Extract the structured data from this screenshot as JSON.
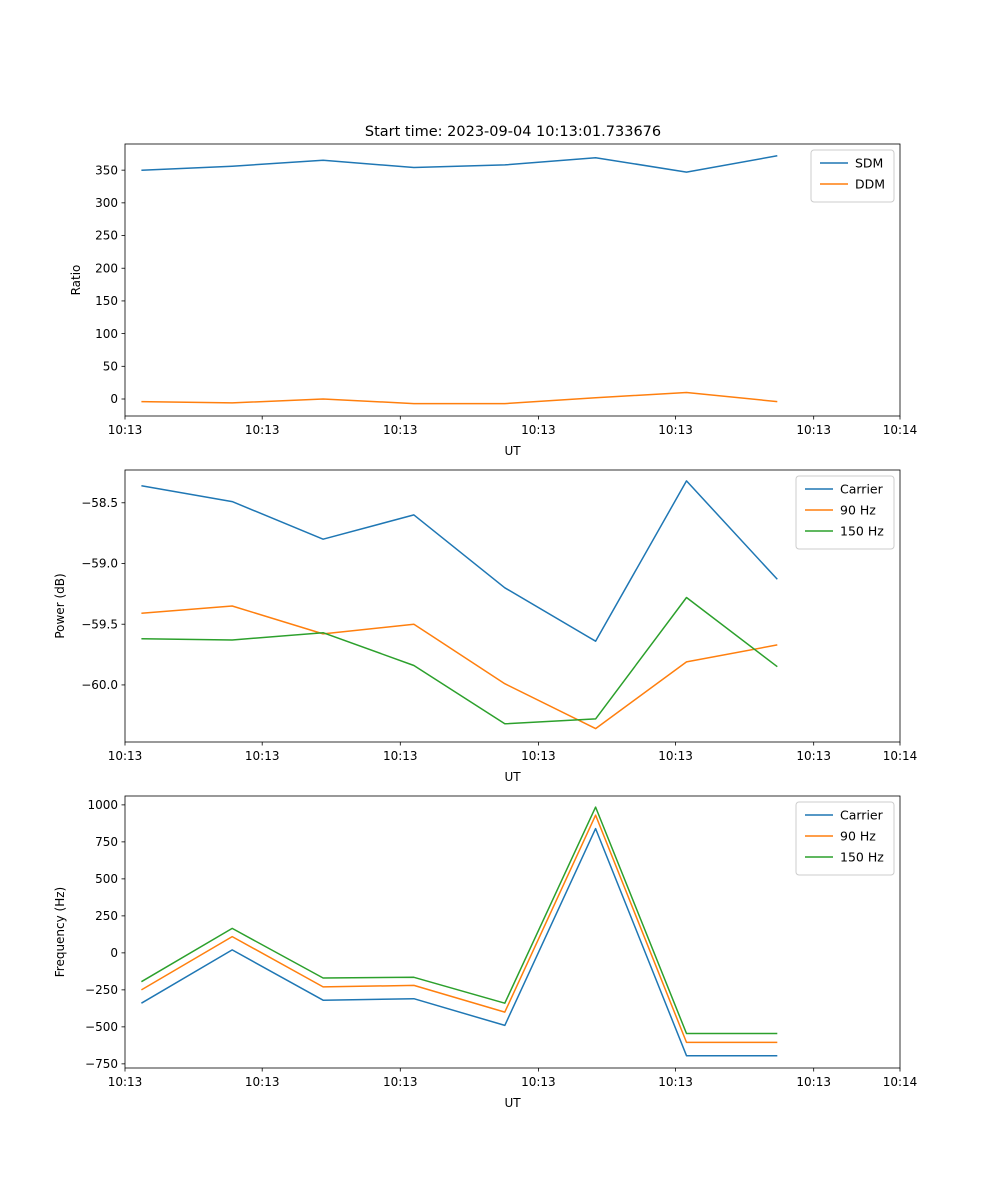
{
  "figure": {
    "title": "Start time: 2023-09-04 10:13:01.733676"
  },
  "colors": {
    "blue": "#1f77b4",
    "orange": "#ff7f0e",
    "green": "#2ca02c",
    "axes": "#000000",
    "legend_border": "#cccccc"
  },
  "chart_data": [
    {
      "type": "line",
      "title": "Start time: 2023-09-04 10:13:01.733676",
      "xlabel": "UT",
      "ylabel": "Ratio",
      "x": [
        1,
        2,
        3,
        4,
        5,
        6,
        7,
        8
      ],
      "xlim": [
        0.82,
        9.35
      ],
      "x_ticks": [
        0.82,
        2.33,
        3.85,
        5.37,
        6.88,
        8.4,
        9.35
      ],
      "x_tick_labels": [
        "10:13",
        "10:13",
        "10:13",
        "10:13",
        "10:13",
        "10:13",
        "10:14"
      ],
      "ylim": [
        -26,
        390
      ],
      "y_ticks": [
        0,
        50,
        100,
        150,
        200,
        250,
        300,
        350
      ],
      "y_tick_labels": [
        "0",
        "50",
        "100",
        "150",
        "200",
        "250",
        "300",
        "350"
      ],
      "legend_position": "top-right",
      "series": [
        {
          "name": "SDM",
          "color": "#1f77b4",
          "values": [
            350,
            356,
            365,
            354,
            358,
            369,
            347,
            372
          ]
        },
        {
          "name": "DDM",
          "color": "#ff7f0e",
          "values": [
            -4,
            -6,
            0,
            -7,
            -7,
            2,
            10,
            -4
          ]
        }
      ]
    },
    {
      "type": "line",
      "title": "",
      "xlabel": "UT",
      "ylabel": "Power (dB)",
      "x": [
        1,
        2,
        3,
        4,
        5,
        6,
        7,
        8
      ],
      "xlim": [
        0.82,
        9.35
      ],
      "x_ticks": [
        0.82,
        2.33,
        3.85,
        5.37,
        6.88,
        8.4,
        9.35
      ],
      "x_tick_labels": [
        "10:13",
        "10:13",
        "10:13",
        "10:13",
        "10:13",
        "10:13",
        "10:14"
      ],
      "ylim": [
        -60.47,
        -58.23
      ],
      "y_ticks": [
        -60.0,
        -59.5,
        -59.0,
        -58.5
      ],
      "y_tick_labels": [
        "−60.0",
        "−59.5",
        "−59.0",
        "−58.5"
      ],
      "legend_position": "top-right",
      "series": [
        {
          "name": "Carrier",
          "color": "#1f77b4",
          "values": [
            -58.36,
            -58.49,
            -58.8,
            -58.6,
            -59.2,
            -59.64,
            -58.32,
            -59.13
          ]
        },
        {
          "name": "90 Hz",
          "color": "#ff7f0e",
          "values": [
            -59.41,
            -59.35,
            -59.58,
            -59.5,
            -59.99,
            -60.36,
            -59.81,
            -59.67
          ]
        },
        {
          "name": "150 Hz",
          "color": "#2ca02c",
          "values": [
            -59.62,
            -59.63,
            -59.57,
            -59.84,
            -60.32,
            -60.28,
            -59.28,
            -59.85
          ]
        }
      ]
    },
    {
      "type": "line",
      "title": "",
      "xlabel": "UT",
      "ylabel": "Frequency (Hz)",
      "x": [
        1,
        2,
        3,
        4,
        5,
        6,
        7,
        8
      ],
      "xlim": [
        0.82,
        9.35
      ],
      "x_ticks": [
        0.82,
        2.33,
        3.85,
        5.37,
        6.88,
        8.4,
        9.35
      ],
      "x_tick_labels": [
        "10:13",
        "10:13",
        "10:13",
        "10:13",
        "10:13",
        "10:13",
        "10:14"
      ],
      "ylim": [
        -778,
        1060
      ],
      "y_ticks": [
        -750,
        -500,
        -250,
        0,
        250,
        500,
        750,
        1000
      ],
      "y_tick_labels": [
        "−750",
        "−500",
        "−250",
        "0",
        "250",
        "500",
        "750",
        "1000"
      ],
      "legend_position": "top-right",
      "series": [
        {
          "name": "Carrier",
          "color": "#1f77b4",
          "values": [
            -340,
            20,
            -320,
            -310,
            -490,
            840,
            -695,
            -695
          ]
        },
        {
          "name": "90 Hz",
          "color": "#ff7f0e",
          "values": [
            -250,
            110,
            -230,
            -220,
            -400,
            930,
            -605,
            -605
          ]
        },
        {
          "name": "150 Hz",
          "color": "#2ca02c",
          "values": [
            -195,
            165,
            -170,
            -165,
            -340,
            985,
            -545,
            -545
          ]
        }
      ]
    }
  ]
}
